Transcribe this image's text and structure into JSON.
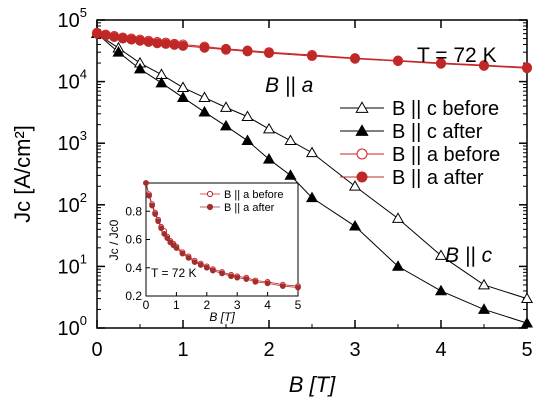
{
  "chart_data": [
    {
      "type": "scatter",
      "x_scale": "linear",
      "y_scale": "log",
      "xlabel": "B [T]",
      "ylabel": "Jc [A/cm²]",
      "xlim": [
        0,
        5
      ],
      "ylim": [
        1,
        100000
      ],
      "x_ticks": [
        "0",
        "1",
        "2",
        "3",
        "4",
        "5"
      ],
      "y_ticks": [
        {
          "mant": "10",
          "exp": "0"
        },
        {
          "mant": "10",
          "exp": "1"
        },
        {
          "mant": "10",
          "exp": "2"
        },
        {
          "mant": "10",
          "exp": "3"
        },
        {
          "mant": "10",
          "exp": "4"
        },
        {
          "mant": "10",
          "exp": "5"
        }
      ],
      "grid": false,
      "legend_position": "right",
      "annotations": {
        "temperature": "T = 72 K",
        "b_par_a": "B || a",
        "b_par_c": "B || c"
      },
      "series": [
        {
          "name": "B || c before",
          "marker": "open-triangle",
          "color": "#000000",
          "x": [
            0,
            0.25,
            0.5,
            0.75,
            1.0,
            1.25,
            1.5,
            1.75,
            2.0,
            2.25,
            2.5,
            3.0,
            3.5,
            4.0,
            4.5,
            5.0
          ],
          "y": [
            60000,
            35000,
            20000,
            13000,
            8000,
            5500,
            3800,
            2700,
            1700,
            1100,
            700,
            200,
            60,
            15,
            5,
            3
          ]
        },
        {
          "name": "B || c after",
          "marker": "filled-triangle",
          "color": "#000000",
          "x": [
            0,
            0.25,
            0.5,
            0.75,
            1.0,
            1.25,
            1.5,
            1.75,
            2.0,
            2.25,
            2.5,
            3.0,
            3.5,
            4.0,
            4.5,
            5.0
          ],
          "y": [
            60000,
            30000,
            16000,
            9500,
            5500,
            3200,
            1900,
            1100,
            550,
            300,
            130,
            45,
            10,
            4,
            2,
            1.2
          ]
        },
        {
          "name": "B || a before",
          "marker": "open-circle",
          "color": "#d02020",
          "x": [
            0,
            0.1,
            0.2,
            0.3,
            0.4,
            0.5,
            0.6,
            0.7,
            0.8,
            0.9,
            1.0,
            1.25,
            1.5,
            1.75,
            2.0,
            2.5,
            3.0,
            3.5,
            4.0,
            4.5,
            5.0
          ],
          "y": [
            62000,
            58000,
            55000,
            52000,
            50000,
            48000,
            46000,
            44000,
            43000,
            41000,
            40000,
            37000,
            34000,
            32000,
            30000,
            27000,
            24000,
            22000,
            20000,
            18500,
            17000
          ]
        },
        {
          "name": "B || a after",
          "marker": "filled-circle",
          "color": "#c02828",
          "x": [
            0,
            0.1,
            0.2,
            0.3,
            0.4,
            0.5,
            0.6,
            0.7,
            0.8,
            0.9,
            1.0,
            1.25,
            1.5,
            1.75,
            2.0,
            2.5,
            3.0,
            3.5,
            4.0,
            4.5,
            5.0
          ],
          "y": [
            60000,
            56000,
            53000,
            50000,
            48000,
            46000,
            44000,
            42000,
            41000,
            39500,
            38000,
            35500,
            33000,
            31000,
            29000,
            26000,
            23500,
            21500,
            19500,
            18000,
            16500
          ]
        }
      ]
    },
    {
      "type": "scatter",
      "role": "inset",
      "xlabel": "B [T]",
      "ylabel": "Jc / Jc0",
      "xlim": [
        0,
        5
      ],
      "ylim": [
        0.2,
        1.0
      ],
      "x_ticks": [
        "0",
        "1",
        "2",
        "3",
        "4",
        "5"
      ],
      "y_ticks": [
        "0.2",
        "0.4",
        "0.6",
        "0.8"
      ],
      "grid": false,
      "legend_position": "top-right",
      "annotations": {
        "temperature": "T = 72 K"
      },
      "series": [
        {
          "name": "B || a before",
          "marker": "open-circle",
          "color": "#d02020",
          "x": [
            0,
            0.1,
            0.2,
            0.3,
            0.4,
            0.5,
            0.6,
            0.7,
            0.8,
            0.9,
            1.0,
            1.2,
            1.4,
            1.6,
            1.8,
            2.0,
            2.2,
            2.5,
            2.8,
            3.0,
            3.3,
            3.6,
            4.0,
            4.5,
            5.0
          ],
          "y": [
            1.0,
            0.92,
            0.85,
            0.79,
            0.74,
            0.69,
            0.66,
            0.62,
            0.59,
            0.57,
            0.55,
            0.51,
            0.48,
            0.45,
            0.43,
            0.41,
            0.39,
            0.37,
            0.35,
            0.34,
            0.33,
            0.31,
            0.3,
            0.28,
            0.27
          ]
        },
        {
          "name": "B || a after",
          "marker": "filled-circle",
          "color": "#a03030",
          "x": [
            0,
            0.1,
            0.2,
            0.3,
            0.4,
            0.5,
            0.6,
            0.7,
            0.8,
            0.9,
            1.0,
            1.2,
            1.4,
            1.6,
            1.8,
            2.0,
            2.2,
            2.5,
            2.8,
            3.0,
            3.3,
            3.6,
            4.0,
            4.5,
            5.0
          ],
          "y": [
            1.0,
            0.91,
            0.84,
            0.78,
            0.73,
            0.68,
            0.64,
            0.61,
            0.58,
            0.56,
            0.54,
            0.5,
            0.47,
            0.44,
            0.42,
            0.4,
            0.38,
            0.36,
            0.34,
            0.33,
            0.32,
            0.3,
            0.29,
            0.27,
            0.26
          ]
        }
      ]
    }
  ]
}
